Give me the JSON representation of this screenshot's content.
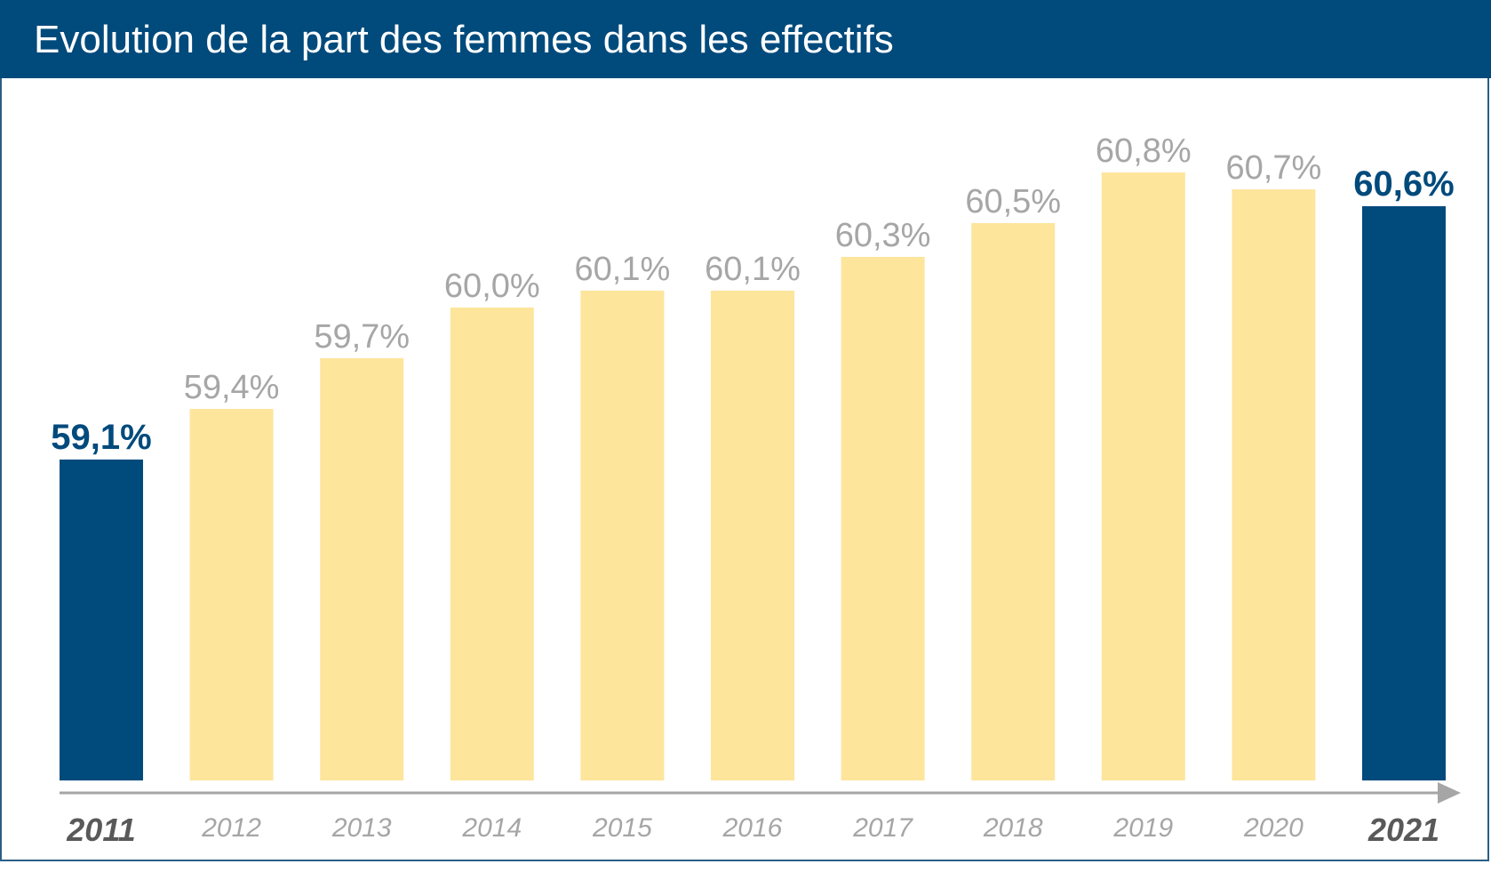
{
  "title": "Evolution de la part des femmes dans les effectifs",
  "colors": {
    "header": "#004a7c",
    "highlight_bar": "#004a7c",
    "normal_bar": "#fde59c",
    "normal_label": "#a6a6a6",
    "highlight_label": "#004a7c",
    "axis": "#a6a6a6"
  },
  "chart_data": {
    "type": "bar",
    "categories": [
      "2011",
      "2012",
      "2013",
      "2014",
      "2015",
      "2016",
      "2017",
      "2018",
      "2019",
      "2020",
      "2021"
    ],
    "values": [
      59.1,
      59.4,
      59.7,
      60.0,
      60.1,
      60.1,
      60.3,
      60.5,
      60.8,
      60.7,
      60.6
    ],
    "labels": [
      "59,1%",
      "59,4%",
      "59,7%",
      "60,0%",
      "60,1%",
      "60,1%",
      "60,3%",
      "60,5%",
      "60,8%",
      "60,7%",
      "60,6%"
    ],
    "highlighted": [
      "2011",
      "2021"
    ],
    "title": "Evolution de la part des femmes dans les effectifs",
    "xlabel": "",
    "ylabel": "",
    "ylim": [
      57.2,
      61.0
    ],
    "grid": false,
    "legend": "none"
  }
}
